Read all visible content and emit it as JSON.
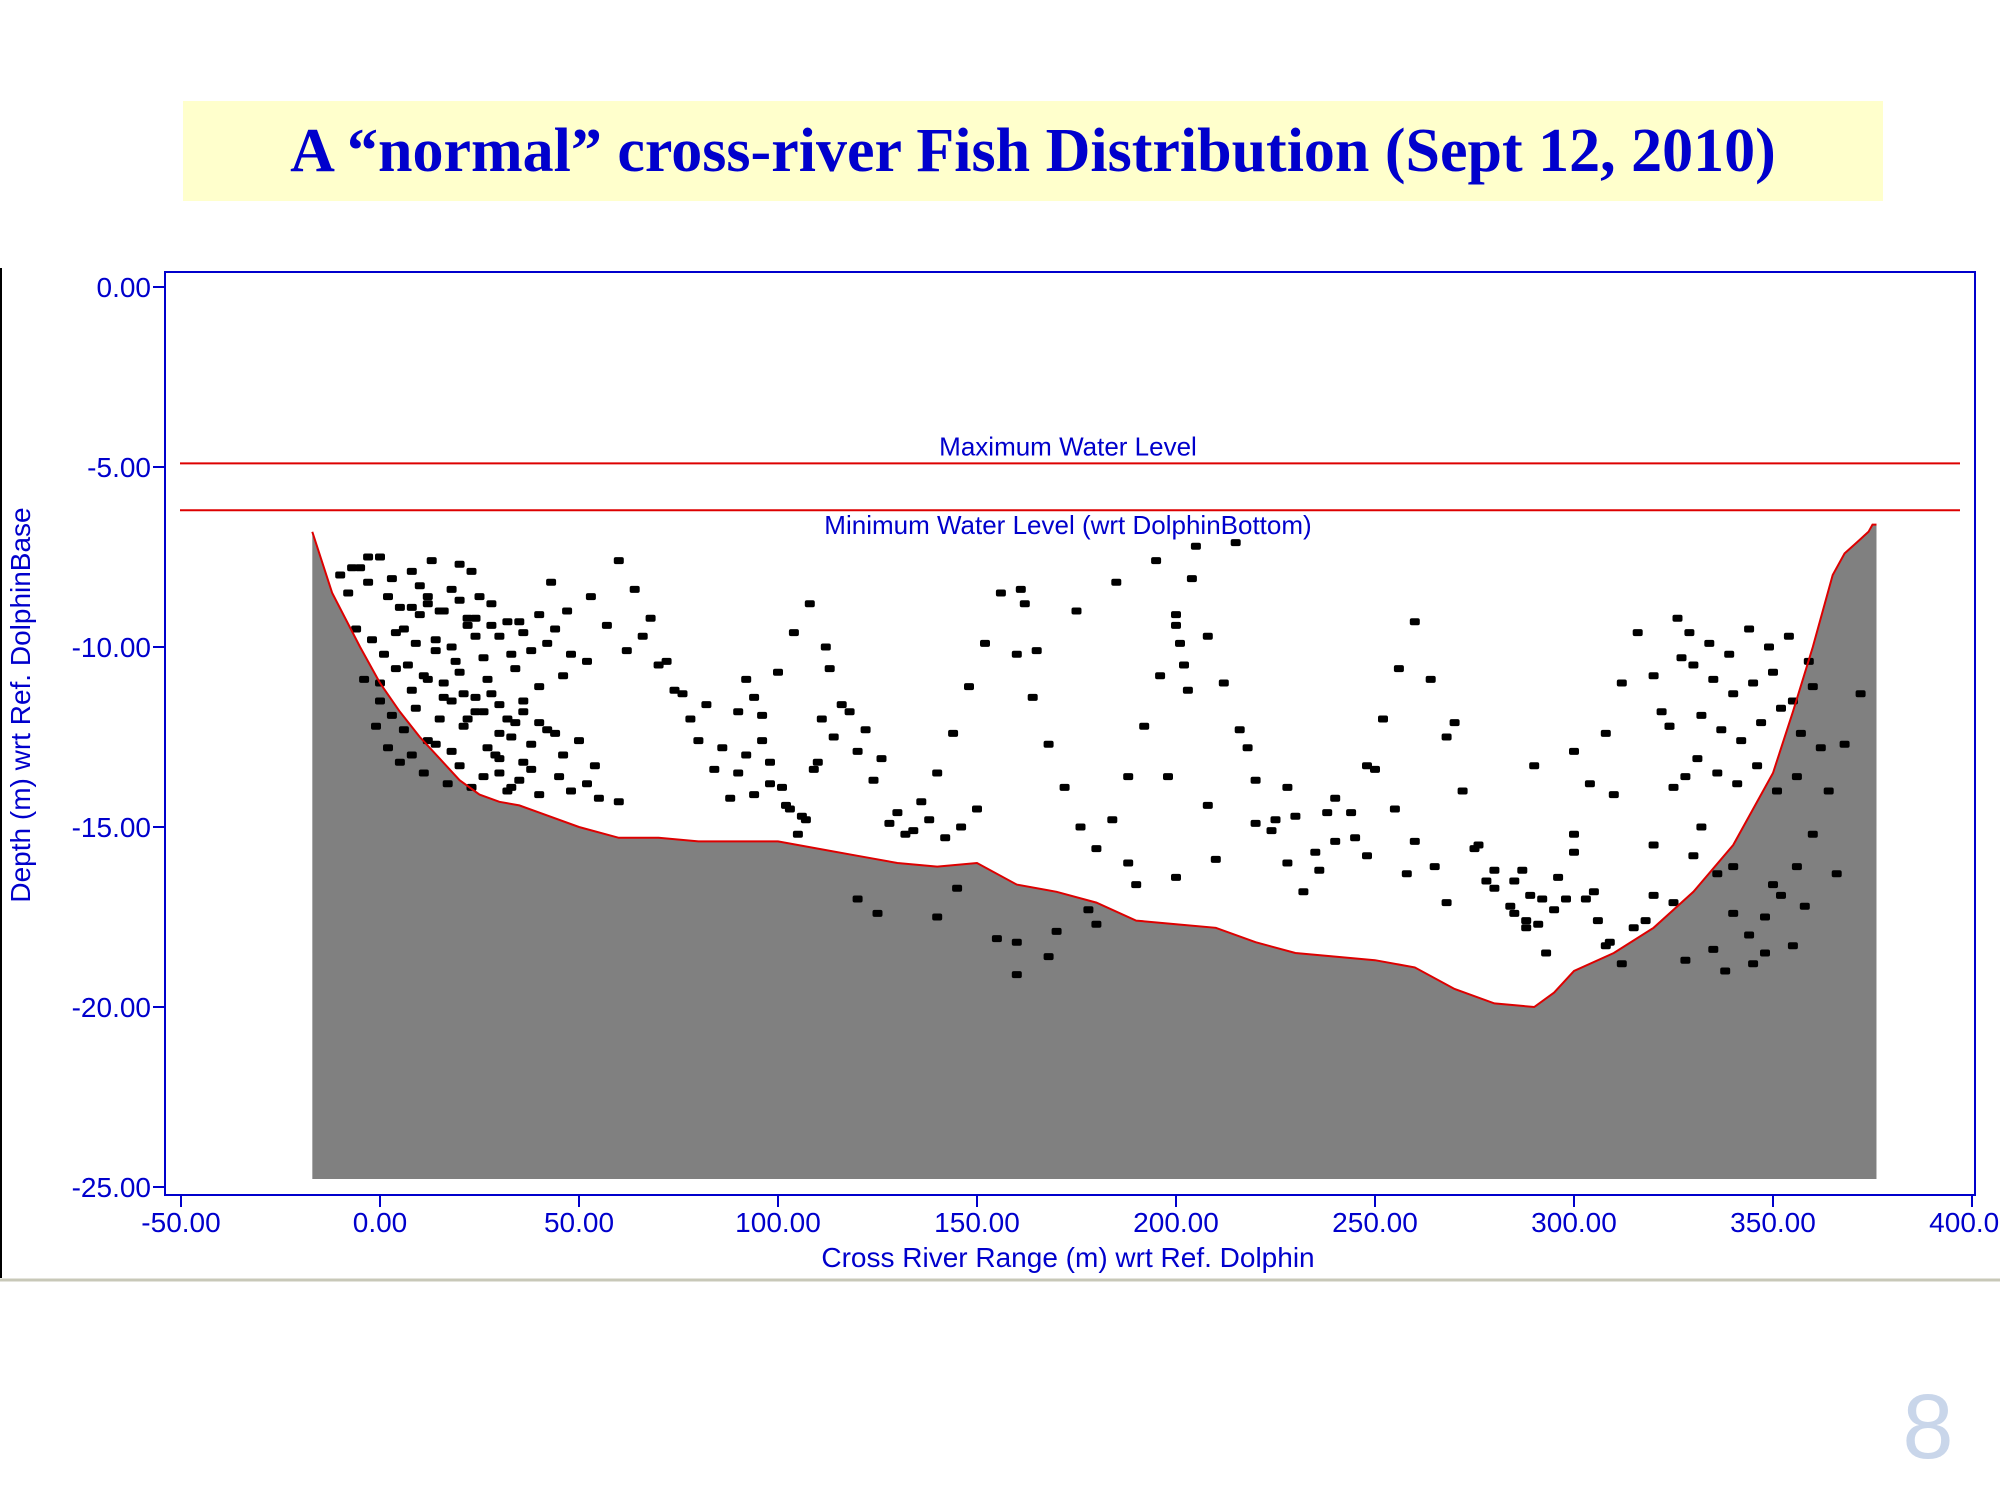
{
  "slide": {
    "title": "A “normal” cross-river Fish Distribution (Sept 12, 2010)",
    "page_number": "8"
  },
  "colors": {
    "axis": "#0000cc",
    "water_level_line": "#dd0000",
    "riverbed_fill": "#808080",
    "riverbed_outline": "#dd0000",
    "fish_points": "#000000",
    "title_background": "#ffffcc",
    "page_number": "#c9d6ea"
  },
  "chart_data": {
    "type": "scatter",
    "xlabel": "Cross River Range (m) wrt Ref. Dolphin",
    "ylabel": "Depth (m) wrt Ref. DolphinBase",
    "xlim": [
      -50,
      400
    ],
    "ylim": [
      -25,
      0
    ],
    "x_ticks": [
      "-50.00",
      "0.00",
      "50.00",
      "100.00",
      "150.00",
      "200.00",
      "250.00",
      "300.00",
      "350.00",
      "400.00"
    ],
    "y_ticks": [
      "0.00",
      "-5.00",
      "-10.00",
      "-15.00",
      "-20.00",
      "-25.00"
    ],
    "grid": false,
    "reference_lines": [
      {
        "label": "Maximum Water Level",
        "y": -4.9
      },
      {
        "label": "Minimum Water Level (wrt DolphinBottom)",
        "y": -6.2
      }
    ],
    "riverbed_profile": {
      "x": [
        -17,
        -12,
        -5,
        0,
        5,
        10,
        15,
        20,
        25,
        30,
        35,
        40,
        50,
        60,
        70,
        80,
        90,
        100,
        110,
        120,
        130,
        140,
        150,
        160,
        170,
        180,
        190,
        200,
        210,
        220,
        230,
        240,
        250,
        260,
        270,
        280,
        290,
        295,
        300,
        310,
        320,
        330,
        340,
        350,
        355,
        360,
        365,
        368,
        371,
        372,
        373,
        374,
        375,
        376
      ],
      "y": [
        -6.8,
        -8.5,
        -10.0,
        -11.0,
        -11.8,
        -12.5,
        -13.1,
        -13.7,
        -14.1,
        -14.3,
        -14.4,
        -14.6,
        -15.0,
        -15.3,
        -15.3,
        -15.4,
        -15.4,
        -15.4,
        -15.6,
        -15.8,
        -16.0,
        -16.1,
        -16.0,
        -16.6,
        -16.8,
        -17.1,
        -17.6,
        -17.7,
        -17.8,
        -18.2,
        -18.5,
        -18.6,
        -18.7,
        -18.9,
        -19.5,
        -19.9,
        -20.0,
        -19.6,
        -19.0,
        -18.5,
        -17.8,
        -16.8,
        -15.5,
        -13.5,
        -11.8,
        -10.0,
        -8.0,
        -7.4,
        -7.1,
        -7.0,
        -6.9,
        -6.8,
        -6.6,
        -6.6
      ]
    },
    "fish_points": {
      "x": [
        -10,
        -8,
        -5,
        -3,
        0,
        2,
        5,
        8,
        10,
        12,
        15,
        18,
        20,
        22,
        25,
        28,
        -6,
        -2,
        1,
        4,
        7,
        9,
        11,
        14,
        16,
        19,
        21,
        24,
        27,
        30,
        33,
        35,
        -4,
        0,
        3,
        6,
        9,
        12,
        15,
        18,
        21,
        24,
        27,
        30,
        33,
        36,
        38,
        40,
        -1,
        2,
        5,
        8,
        11,
        14,
        17,
        20,
        23,
        26,
        29,
        32,
        35,
        0,
        4,
        8,
        12,
        16,
        20,
        24,
        28,
        32,
        36,
        40,
        44,
        6,
        10,
        14,
        18,
        22,
        26,
        30,
        34,
        38,
        42,
        46,
        8,
        12,
        16,
        20,
        24,
        28,
        32,
        36,
        40,
        44,
        48,
        52,
        18,
        22,
        26,
        30,
        34,
        38,
        42,
        46,
        50,
        54,
        30,
        33,
        36,
        40,
        45,
        48,
        52,
        55,
        60,
        -7,
        -3,
        3,
        13,
        23,
        43,
        47,
        53,
        57,
        62,
        66,
        70,
        74,
        78,
        82,
        86,
        90,
        94,
        98,
        102,
        106,
        110,
        114,
        118,
        122,
        126,
        130,
        134,
        138,
        142,
        146,
        150,
        60,
        64,
        68,
        72,
        76,
        80,
        84,
        88,
        92,
        96,
        100,
        104,
        108,
        112,
        116,
        120,
        124,
        128,
        132,
        136,
        140,
        144,
        148,
        152,
        156,
        160,
        164,
        168,
        172,
        176,
        180,
        184,
        188,
        192,
        196,
        200,
        204,
        208,
        212,
        216,
        220,
        224,
        228,
        232,
        236,
        240,
        244,
        248,
        252,
        256,
        260,
        264,
        268,
        272,
        276,
        280,
        284,
        288,
        292,
        296,
        300,
        304,
        308,
        312,
        316,
        320,
        324,
        328,
        332,
        336,
        340,
        344,
        348,
        352,
        356,
        360,
        364,
        368,
        372,
        165,
        175,
        185,
        195,
        205,
        215,
        225,
        235,
        245,
        255,
        265,
        275,
        285,
        295,
        305,
        315,
        325,
        335,
        345,
        355,
        170,
        190,
        210,
        230,
        250,
        270,
        290,
        310,
        330,
        350,
        120,
        140,
        160,
        180,
        200,
        220,
        240,
        260,
        280,
        300,
        320,
        340,
        125,
        145,
        155,
        168,
        178,
        188,
        198,
        208,
        218,
        228,
        238,
        248,
        258,
        268,
        278,
        288,
        298,
        308,
        318,
        328,
        338,
        348,
        358,
        366,
        320,
        325,
        330,
        335,
        340,
        345,
        350,
        355,
        360,
        322,
        327,
        332,
        337,
        342,
        347,
        352,
        357,
        362,
        324,
        329,
        334,
        339,
        344,
        349,
        354,
        359,
        326,
        331,
        336,
        341,
        346,
        351,
        356,
        300,
        303,
        306,
        309,
        312,
        285,
        287,
        289,
        291,
        293,
        160,
        161,
        162,
        200,
        201,
        202,
        203,
        90,
        92,
        94,
        96,
        98,
        101,
        103,
        105,
        107,
        109,
        111,
        113
      ],
      "y": [
        -8.0,
        -8.5,
        -7.8,
        -8.2,
        -7.5,
        -8.6,
        -8.9,
        -7.9,
        -8.3,
        -8.8,
        -9.0,
        -8.4,
        -7.7,
        -9.2,
        -8.6,
        -9.4,
        -9.5,
        -9.8,
        -10.2,
        -9.6,
        -10.5,
        -9.9,
        -10.8,
        -10.1,
        -11.0,
        -10.4,
        -11.3,
        -9.7,
        -10.9,
        -11.6,
        -10.2,
        -9.3,
        -10.9,
        -11.5,
        -11.9,
        -12.3,
        -11.7,
        -12.6,
        -12.0,
        -12.9,
        -12.2,
        -11.4,
        -12.8,
        -13.1,
        -12.5,
        -11.8,
        -13.4,
        -12.1,
        -12.2,
        -12.8,
        -13.2,
        -13.0,
        -13.5,
        -12.7,
        -13.8,
        -13.3,
        -13.9,
        -13.6,
        -13.0,
        -14.0,
        -13.7,
        -11.0,
        -10.6,
        -11.2,
        -10.9,
        -11.4,
        -10.7,
        -11.8,
        -11.3,
        -12.0,
        -11.5,
        -11.1,
        -12.4,
        -9.5,
        -9.1,
        -9.8,
        -10.0,
        -9.4,
        -10.3,
        -9.7,
        -10.6,
        -10.1,
        -9.9,
        -10.8,
        -8.9,
        -8.6,
        -9.0,
        -8.7,
        -9.2,
        -8.8,
        -9.3,
        -9.6,
        -9.1,
        -9.5,
        -10.2,
        -10.4,
        -11.5,
        -12.0,
        -11.8,
        -12.4,
        -12.1,
        -12.7,
        -12.3,
        -13.0,
        -12.6,
        -13.3,
        -13.5,
        -13.9,
        -13.2,
        -14.1,
        -13.6,
        -14.0,
        -13.8,
        -14.2,
        -14.3,
        -7.8,
        -7.5,
        -8.1,
        -7.6,
        -7.9,
        -8.2,
        -9.0,
        -8.6,
        -9.4,
        -10.1,
        -9.7,
        -10.5,
        -11.2,
        -12.0,
        -11.6,
        -12.8,
        -13.5,
        -14.1,
        -13.8,
        -14.4,
        -14.7,
        -13.2,
        -12.5,
        -11.8,
        -12.3,
        -13.1,
        -14.6,
        -15.1,
        -14.8,
        -15.3,
        -15.0,
        -14.5,
        -7.6,
        -8.4,
        -9.2,
        -10.4,
        -11.3,
        -12.6,
        -13.4,
        -14.2,
        -13.0,
        -11.9,
        -10.7,
        -9.6,
        -8.8,
        -10.0,
        -11.6,
        -12.9,
        -13.7,
        -14.9,
        -15.2,
        -14.3,
        -13.5,
        -12.4,
        -11.1,
        -9.9,
        -8.5,
        -10.2,
        -11.4,
        -12.7,
        -13.9,
        -15.0,
        -15.6,
        -14.8,
        -13.6,
        -12.2,
        -10.8,
        -9.4,
        -8.1,
        -9.7,
        -11.0,
        -12.3,
        -13.7,
        -15.1,
        -16.0,
        -16.8,
        -16.2,
        -15.4,
        -14.6,
        -13.3,
        -12.0,
        -10.6,
        -9.3,
        -10.9,
        -12.5,
        -14.0,
        -15.5,
        -16.7,
        -17.2,
        -17.6,
        -17.0,
        -16.4,
        -15.2,
        -13.8,
        -12.4,
        -11.0,
        -9.6,
        -10.8,
        -12.2,
        -13.6,
        -15.0,
        -16.3,
        -17.4,
        -18.0,
        -17.5,
        -16.9,
        -16.1,
        -15.2,
        -14.0,
        -12.7,
        -11.3,
        -10.1,
        -9.0,
        -8.2,
        -7.6,
        -7.2,
        -7.1,
        -14.8,
        -15.7,
        -15.3,
        -14.5,
        -16.1,
        -15.6,
        -16.5,
        -17.3,
        -16.8,
        -17.8,
        -17.1,
        -18.4,
        -18.8,
        -18.3,
        -17.9,
        -16.6,
        -15.9,
        -14.7,
        -13.4,
        -12.1,
        -13.3,
        -14.1,
        -15.8,
        -16.6,
        -17.0,
        -17.5,
        -18.2,
        -17.7,
        -16.4,
        -14.9,
        -14.2,
        -15.4,
        -16.2,
        -15.7,
        -16.9,
        -16.1,
        -17.4,
        -16.7,
        -18.1,
        -18.6,
        -17.3,
        -16.0,
        -13.6,
        -14.4,
        -12.8,
        -13.9,
        -14.6,
        -15.8,
        -16.3,
        -17.1,
        -16.5,
        -17.8,
        -17.0,
        -18.3,
        -17.6,
        -18.7,
        -19.0,
        -18.5,
        -17.2,
        -16.3,
        -15.5,
        -13.9,
        -10.5,
        -10.9,
        -11.3,
        -11.0,
        -10.7,
        -11.5,
        -11.1,
        -11.8,
        -10.3,
        -11.9,
        -12.3,
        -12.6,
        -12.1,
        -11.7,
        -12.4,
        -12.8,
        -12.2,
        -9.6,
        -9.9,
        -10.2,
        -9.5,
        -10.0,
        -9.7,
        -10.4,
        -9.2,
        -13.1,
        -13.5,
        -13.8,
        -13.3,
        -14.0,
        -13.6,
        -12.9,
        -17.0,
        -17.6,
        -18.2,
        -18.8,
        -17.4,
        -16.2,
        -16.9,
        -17.7,
        -18.5,
        -19.1,
        -8.4,
        -8.8,
        -9.1,
        -9.9,
        -10.5,
        -11.2,
        -11.8,
        -10.9,
        -11.4,
        -12.6,
        -13.2,
        -13.9,
        -14.5,
        -15.2,
        -14.8,
        -13.4,
        -12.0,
        -10.6
      ]
    }
  }
}
